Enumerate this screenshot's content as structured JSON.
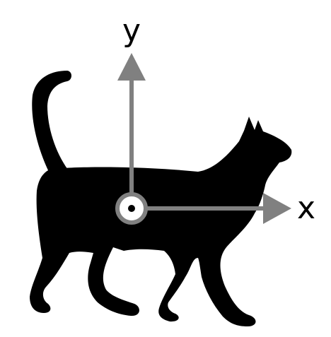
{
  "diagram": {
    "labels": {
      "x_axis": "x",
      "y_axis": "y"
    },
    "colors": {
      "silhouette": "#000000",
      "axis": "#808080",
      "origin_fill": "#ffffff",
      "background": "#ffffff"
    },
    "icons": {
      "subject": "cat-silhouette-icon",
      "origin": "origin-marker-icon"
    }
  }
}
